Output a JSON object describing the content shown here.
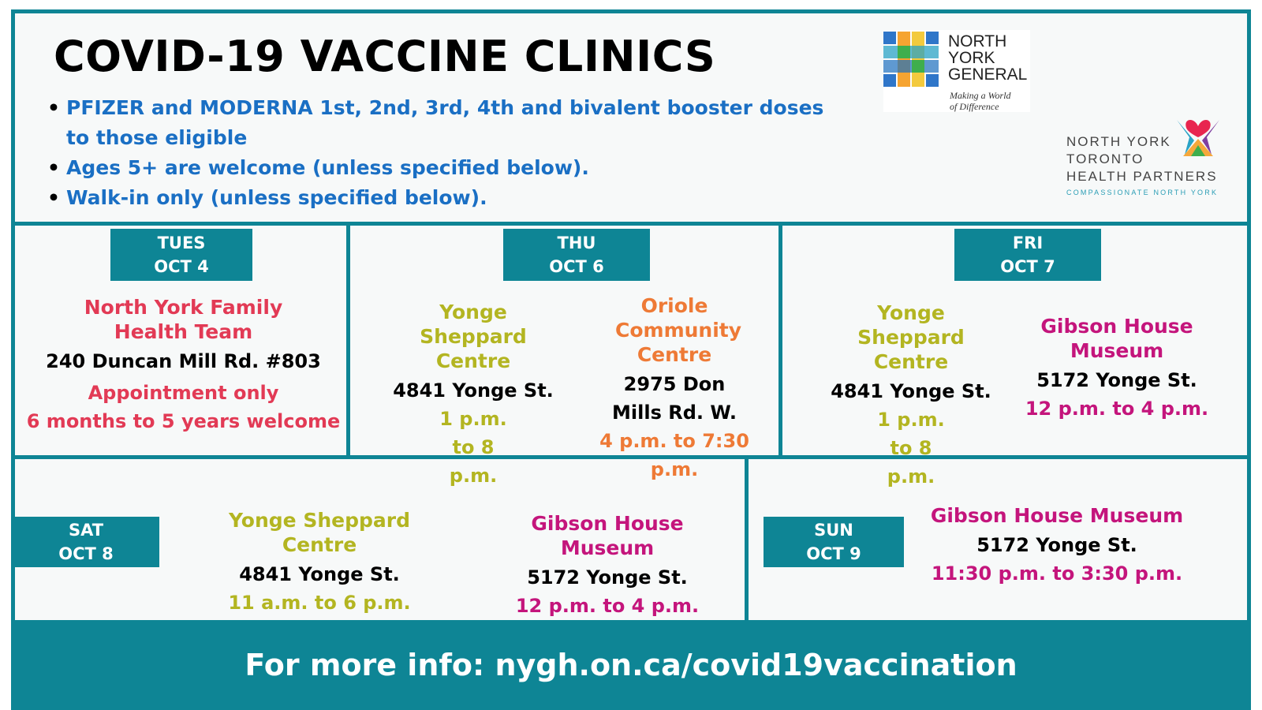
{
  "title": "COVID-19 VACCINE CLINICS",
  "bullets": [
    "PFIZER and MODERNA 1st, 2nd, 3rd, 4th and bivalent booster doses to those eligible",
    "Ages 5+ are welcome (unless specified below).",
    "Walk-in only (unless specified below)."
  ],
  "logos": {
    "nygh": {
      "name": "NORTH\nYORK\nGENERAL",
      "tagline": "Making a World\nof Difference"
    },
    "nyt": {
      "name": "NORTH YORK\nTORONTO\nHEALTH PARTNERS",
      "tagline": "COMPASSIONATE NORTH YORK"
    }
  },
  "days": {
    "tue": {
      "day": "TUES",
      "date": "OCT 4",
      "clinics": [
        {
          "name": "North York Family Health Team",
          "address": "240 Duncan Mill Rd. #803",
          "note": "Appointment only",
          "hours": "6 months to 5 years welcome"
        }
      ]
    },
    "thu": {
      "day": "THU",
      "date": "OCT 6",
      "clinics": [
        {
          "name": "Yonge Sheppard Centre",
          "address": "4841 Yonge St.",
          "hours": "1 p.m. to 8 p.m."
        },
        {
          "name": "Oriole Community Centre",
          "address": "2975 Don Mills Rd. W.",
          "hours": "4 p.m. to 7:30 p.m."
        }
      ]
    },
    "fri": {
      "day": "FRI",
      "date": "OCT 7",
      "clinics": [
        {
          "name": "Yonge Sheppard Centre",
          "address": "4841 Yonge St.",
          "hours": "1 p.m. to 8 p.m."
        },
        {
          "name": "Gibson House Museum",
          "address": "5172 Yonge St.",
          "hours": "12 p.m. to 4 p.m."
        }
      ]
    },
    "sat": {
      "day": "SAT",
      "date": "OCT 8",
      "clinics": [
        {
          "name": "Yonge Sheppard Centre",
          "address": "4841 Yonge St.",
          "hours": "11 a.m. to 6 p.m."
        },
        {
          "name": "Gibson House Museum",
          "address": "5172 Yonge St.",
          "hours": "12 p.m. to 4 p.m."
        }
      ]
    },
    "sun": {
      "day": "SUN",
      "date": "OCT 9",
      "clinics": [
        {
          "name": "Gibson House Museum",
          "address": "5172 Yonge St.",
          "hours": "11:30 p.m. to 3:30 p.m."
        }
      ]
    }
  },
  "footer": "For more info: nygh.on.ca/covid19vaccination",
  "colors": {
    "teal": "#0e8595",
    "bullet_blue": "#1a6fc4",
    "red": "#e23a55",
    "olive": "#b3b521",
    "orange": "#ee7a36",
    "magenta": "#c4157c"
  }
}
